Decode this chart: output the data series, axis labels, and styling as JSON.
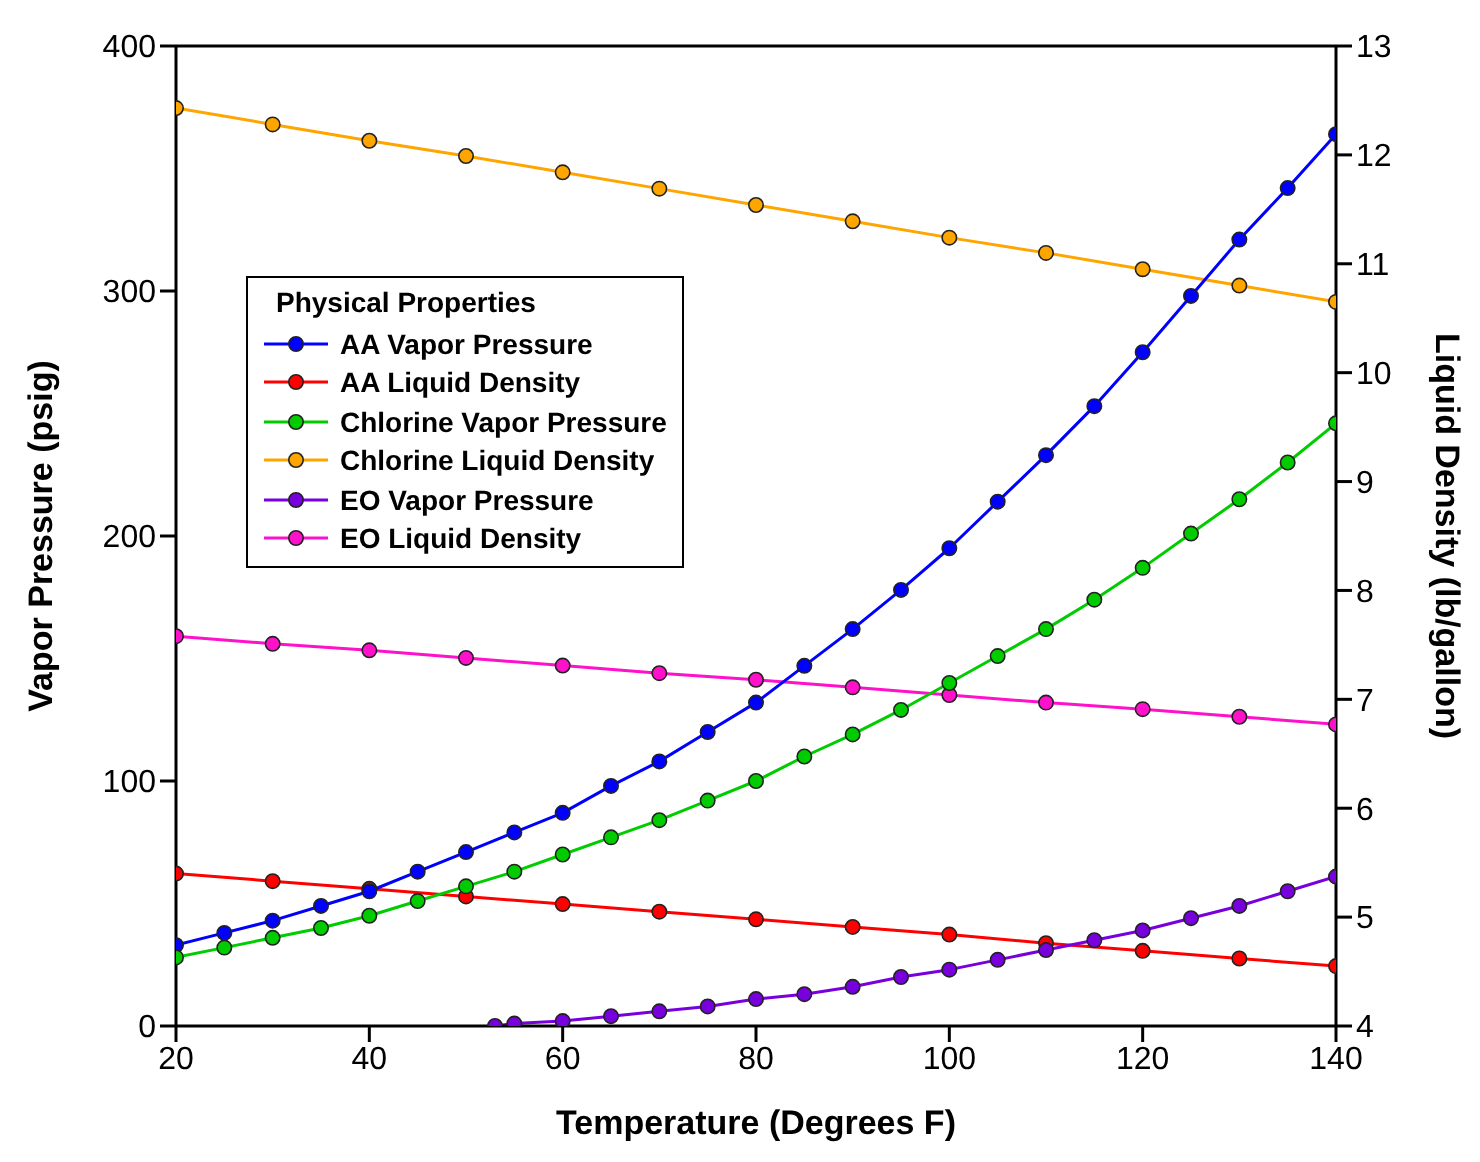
{
  "chart_data": {
    "type": "line",
    "xlabel": "Temperature  (Degrees F)",
    "ylabel": "Vapor Pressure  (psig)",
    "y2label": "Liquid Density (lb/gallon)",
    "legend_title": "Physical Properties",
    "legend": "top left",
    "marker": "circle",
    "line_style": "solid",
    "xlim": [
      20,
      140
    ],
    "xticks": [
      20,
      40,
      60,
      80,
      100,
      120,
      140
    ],
    "ylim": [
      0,
      400
    ],
    "yticks": [
      0,
      100,
      200,
      300,
      400
    ],
    "y2lim": [
      4,
      13
    ],
    "y2ticks": [
      4,
      5,
      6,
      7,
      8,
      9,
      10,
      11,
      12,
      13
    ],
    "series": [
      {
        "name": "AA Vapor Pressure",
        "color": "#0000ff",
        "x": [
          20,
          25,
          30,
          35,
          40,
          45,
          50,
          55,
          60,
          65,
          70,
          75,
          80,
          85,
          90,
          95,
          100,
          105,
          110,
          115,
          120,
          125,
          130,
          135,
          140
        ],
        "values": [
          33,
          38,
          43,
          49,
          55,
          63,
          71,
          79,
          87,
          98,
          108,
          120,
          132,
          147,
          162,
          178,
          195,
          214,
          233,
          253,
          275,
          298,
          321,
          342,
          364
        ]
      },
      {
        "name": "AA Liquid Density",
        "color": "#ff0000",
        "axis": "y2",
        "x": [
          20,
          30,
          40,
          50,
          60,
          70,
          80,
          90,
          100,
          110,
          120,
          130,
          140
        ],
        "values": [
          5.4,
          5.33,
          5.26,
          5.19,
          5.12,
          5.05,
          4.98,
          4.91,
          4.84,
          4.76,
          4.69,
          4.62,
          4.55
        ]
      },
      {
        "name": "Chlorine Vapor Pressure",
        "color": "#00cc00",
        "x": [
          20,
          25,
          30,
          35,
          40,
          45,
          50,
          55,
          60,
          65,
          70,
          75,
          80,
          85,
          90,
          95,
          100,
          105,
          110,
          115,
          120,
          125,
          130,
          135,
          140
        ],
        "values": [
          28,
          32,
          36,
          40,
          45,
          51,
          57,
          63,
          70,
          77,
          84,
          92,
          100,
          110,
          119,
          129,
          140,
          151,
          162,
          174,
          187,
          201,
          215,
          230,
          246
        ]
      },
      {
        "name": "Chlorine Liquid Density",
        "color": "#ffa500",
        "axis": "y2",
        "x": [
          20,
          30,
          40,
          50,
          60,
          70,
          80,
          90,
          100,
          110,
          120,
          130,
          140
        ],
        "values": [
          12.43,
          12.28,
          12.13,
          11.99,
          11.84,
          11.69,
          11.54,
          11.39,
          11.24,
          11.1,
          10.95,
          10.8,
          10.65
        ]
      },
      {
        "name": "EO Vapor Pressure",
        "color": "#7700dd",
        "x": [
          53,
          55,
          60,
          65,
          70,
          75,
          80,
          85,
          90,
          95,
          100,
          105,
          110,
          115,
          120,
          125,
          130,
          135,
          140
        ],
        "values": [
          0,
          1,
          2,
          4,
          6,
          8,
          11,
          13,
          16,
          20,
          23,
          27,
          31,
          35,
          39,
          44,
          49,
          55,
          61
        ]
      },
      {
        "name": "EO Liquid Density",
        "color": "#ff11cc",
        "axis": "y2",
        "x": [
          20,
          30,
          40,
          50,
          60,
          70,
          80,
          90,
          100,
          110,
          120,
          130,
          140
        ],
        "values": [
          7.58,
          7.51,
          7.45,
          7.38,
          7.31,
          7.24,
          7.18,
          7.11,
          7.04,
          6.97,
          6.91,
          6.84,
          6.77
        ]
      }
    ]
  }
}
